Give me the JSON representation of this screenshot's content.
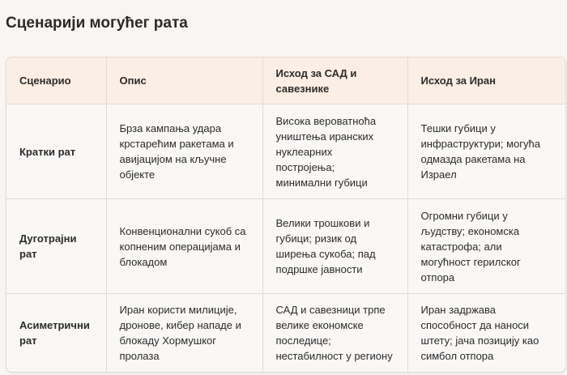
{
  "title": "Сценарији могућег рата",
  "table": {
    "headers": [
      "Сценарио",
      "Опис",
      "Исход за САД и савезнике",
      "Исход за Иран"
    ],
    "rows": [
      {
        "scenario": "Кратки рат",
        "description": "Брза кампања удара крстарећим ракетама и авијацијом на кључне објекте",
        "us_outcome": "Висока вероватноћа уништења иранских нуклеарних постројења; минимални губици",
        "iran_outcome": "Тешки губици у инфраструктури; могућа одмазда ракетама на Израел"
      },
      {
        "scenario": "Дуготрајни рат",
        "description": "Конвенционални сукоб са копненим операцијама и блокадом",
        "us_outcome": "Велики трошкови и губици; ризик од ширења сукоба; пад подршке јавности",
        "iran_outcome": "Огромни губици у људству; економска катастрофа; али могућност герилског отпора"
      },
      {
        "scenario": "Асиметрични рат",
        "description": "Иран користи милиције, дронове, кибер нападе и блокаду Хормушког пролаза",
        "us_outcome": "САД и савезници трпе велике економске последице; нестабилност у региону",
        "iran_outcome": "Иран задржава способност да наноси штету; јача позицију као симбол отпора"
      }
    ]
  }
}
